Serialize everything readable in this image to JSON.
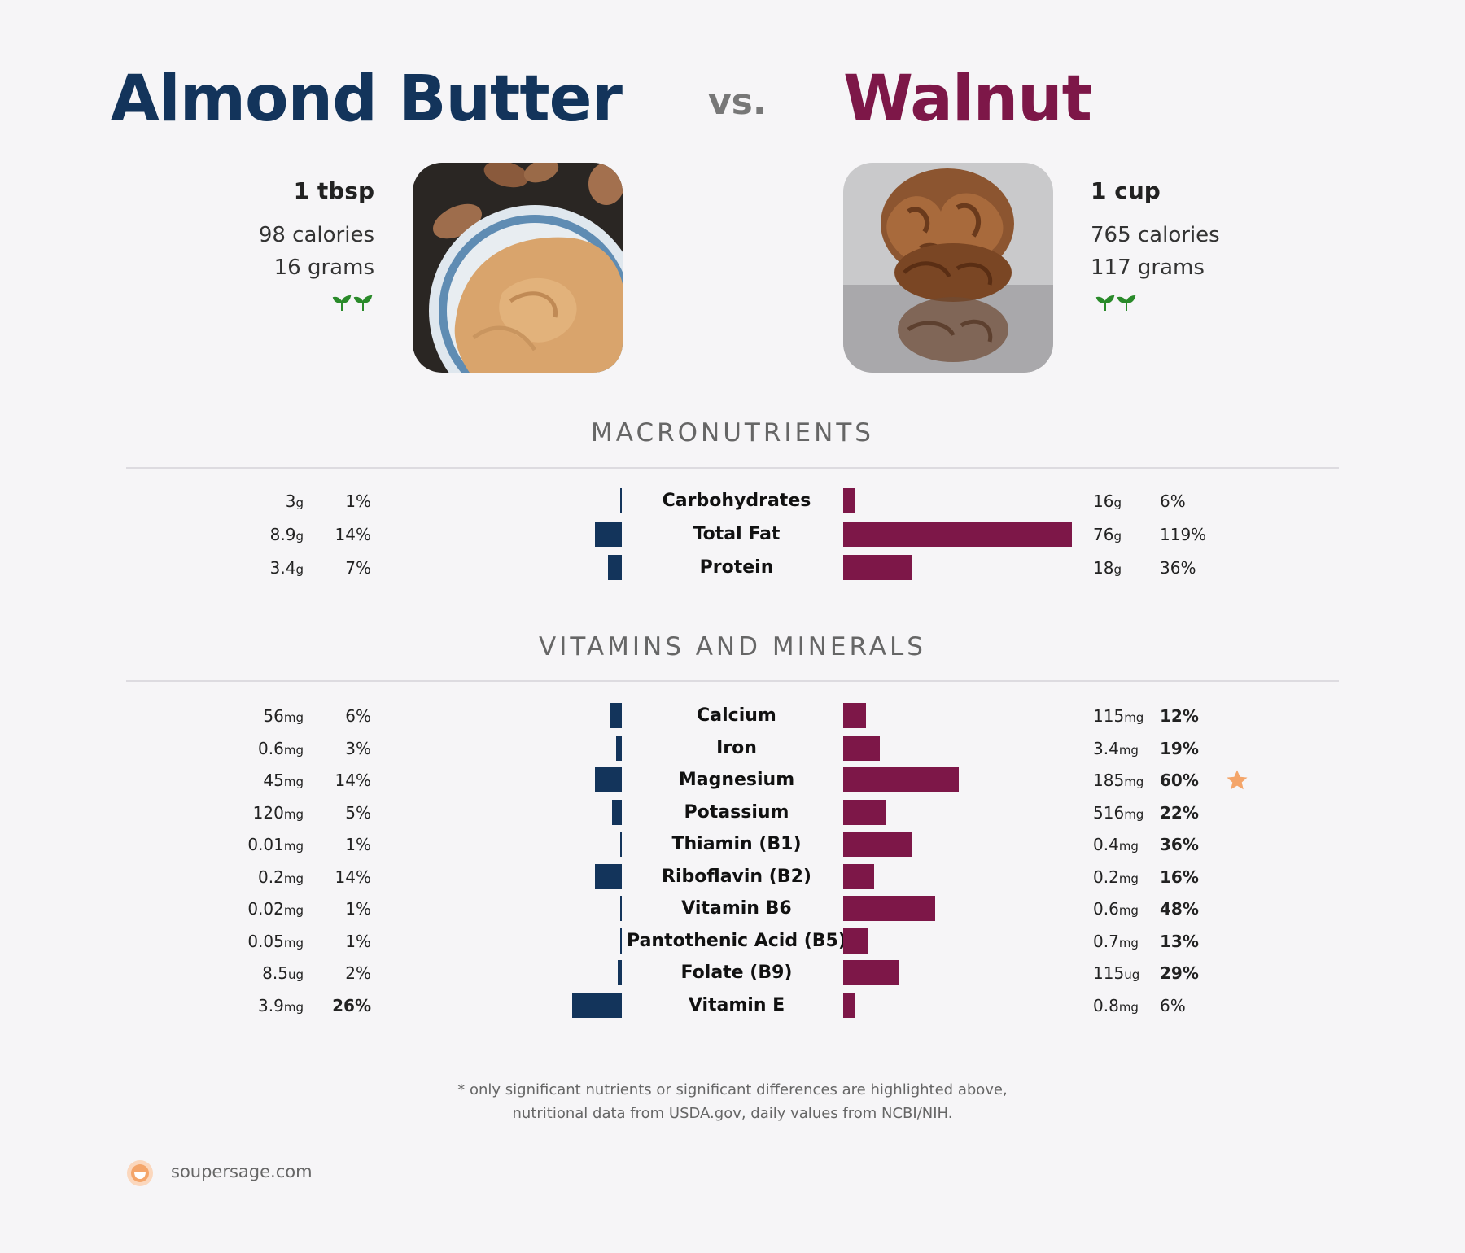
{
  "left_food": {
    "name": "Almond Butter",
    "portion": "1 tbsp",
    "calories": "98 calories",
    "grams": "16 grams",
    "color": "#13345b",
    "icon": "two-leaves-icon"
  },
  "vs_label": "vs.",
  "right_food": {
    "name": "Walnut",
    "portion": "1 cup",
    "calories": "765 calories",
    "grams": "117 grams",
    "color": "#7d1748",
    "icon": "two-leaves-icon"
  },
  "chart_data": [
    {
      "type": "bar",
      "title": "MACRONUTRIENTS",
      "categories": [
        "Carbohydrates",
        "Total Fat",
        "Protein"
      ],
      "series": [
        {
          "name": "Almond Butter",
          "amounts": [
            "3",
            "8.9",
            "3.4"
          ],
          "units": [
            "g",
            "g",
            "g"
          ],
          "daily_value_pct": [
            1,
            14,
            7
          ],
          "labels": [
            "1%",
            "14%",
            "7%"
          ],
          "bold": [
            false,
            false,
            false
          ]
        },
        {
          "name": "Walnut",
          "amounts": [
            "16",
            "76",
            "18"
          ],
          "units": [
            "g",
            "g",
            "g"
          ],
          "daily_value_pct": [
            6,
            119,
            36
          ],
          "labels": [
            "6%",
            "119%",
            "36%"
          ],
          "bold": [
            false,
            false,
            false
          ]
        }
      ]
    },
    {
      "type": "bar",
      "title": "VITAMINS AND MINERALS",
      "categories": [
        "Calcium",
        "Iron",
        "Magnesium",
        "Potassium",
        "Thiamin (B1)",
        "Riboflavin (B2)",
        "Vitamin B6",
        "Pantothenic Acid (B5)",
        "Folate (B9)",
        "Vitamin E"
      ],
      "series": [
        {
          "name": "Almond Butter",
          "amounts": [
            "56",
            "0.6",
            "45",
            "120",
            "0.01",
            "0.2",
            "0.02",
            "0.05",
            "8.5",
            "3.9"
          ],
          "units": [
            "mg",
            "mg",
            "mg",
            "mg",
            "mg",
            "mg",
            "mg",
            "mg",
            "ug",
            "mg"
          ],
          "daily_value_pct": [
            6,
            3,
            14,
            5,
            1,
            14,
            1,
            1,
            2,
            26
          ],
          "labels": [
            "6%",
            "3%",
            "14%",
            "5%",
            "1%",
            "14%",
            "1%",
            "1%",
            "2%",
            "26%"
          ],
          "bold": [
            false,
            false,
            false,
            false,
            false,
            false,
            false,
            false,
            false,
            true
          ]
        },
        {
          "name": "Walnut",
          "amounts": [
            "115",
            "3.4",
            "185",
            "516",
            "0.4",
            "0.2",
            "0.6",
            "0.7",
            "115",
            "0.8"
          ],
          "units": [
            "mg",
            "mg",
            "mg",
            "mg",
            "mg",
            "mg",
            "mg",
            "mg",
            "ug",
            "mg"
          ],
          "daily_value_pct": [
            12,
            19,
            60,
            22,
            36,
            16,
            48,
            13,
            29,
            6
          ],
          "labels": [
            "12%",
            "19%",
            "60%",
            "22%",
            "36%",
            "16%",
            "48%",
            "13%",
            "29%",
            "6%"
          ],
          "bold": [
            true,
            true,
            true,
            true,
            true,
            true,
            true,
            true,
            true,
            false
          ]
        }
      ],
      "star_row": "Magnesium",
      "star_color": "#f4a56a"
    }
  ],
  "footnote": {
    "line1": "* only significant nutrients or significant differences are highlighted above,",
    "line2": "nutritional data from USDA.gov, daily values from NCBI/NIH."
  },
  "brand": {
    "name": "soupersage.com",
    "icon": "soupersage-logo-icon"
  }
}
